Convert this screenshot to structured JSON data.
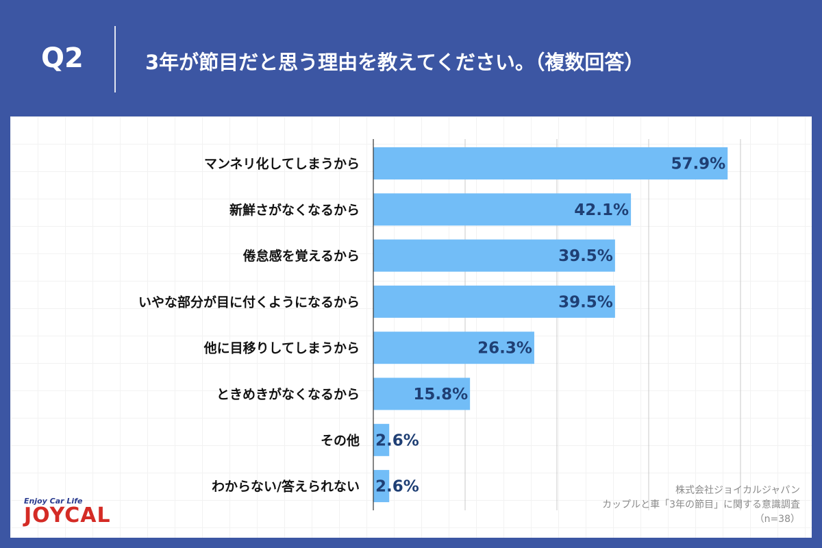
{
  "header": {
    "q": "Q2",
    "title": "3年が節目だと思う理由を教えてください。（複数回答）"
  },
  "chart_data": {
    "type": "bar",
    "orientation": "horizontal",
    "categories": [
      "マンネリ化してしまうから",
      "新鮮さがなくなるから",
      "倦怠感を覚えるから",
      "いやな部分が目に付くようになるから",
      "他に目移りしてしまうから",
      "ときめきがなくなるから",
      "その他",
      "わからない/答えられない"
    ],
    "values": [
      57.9,
      42.1,
      39.5,
      39.5,
      26.3,
      15.8,
      2.6,
      2.6
    ],
    "value_labels": [
      "57.9%",
      "42.1%",
      "39.5%",
      "39.5%",
      "26.3%",
      "15.8%",
      "2.6%",
      "2.6%"
    ],
    "xlim": [
      0,
      75
    ],
    "gridlines": [
      15,
      30,
      45,
      60
    ],
    "bar_color": "#72bdf7",
    "label_color": "#1f3f74"
  },
  "source": {
    "line1": "株式会社ジョイカルジャパン",
    "line2": "カップルと車「3年の節目」に関する意識調査",
    "line3": "（n=38）"
  },
  "logo": {
    "tagline": "Enjoy Car Life",
    "brand": "JOYCAL"
  }
}
